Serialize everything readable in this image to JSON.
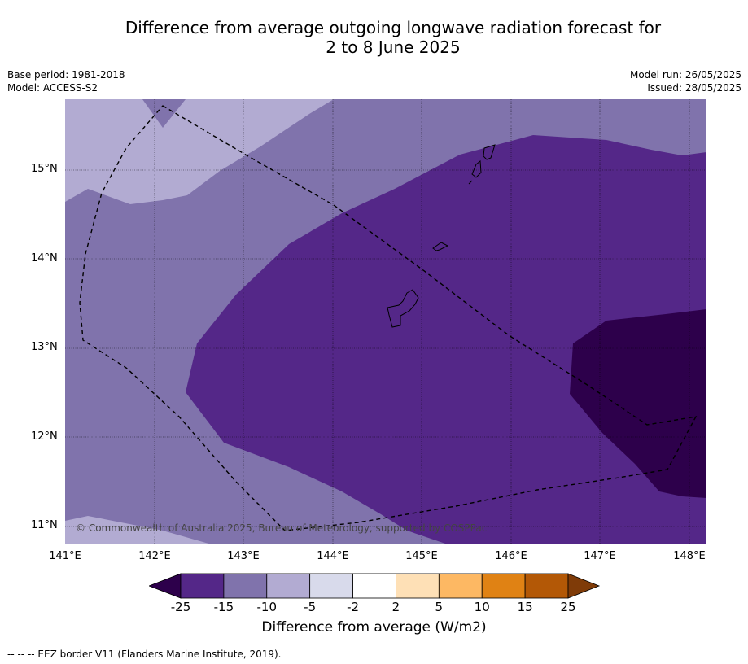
{
  "title": {
    "line1": "Difference from average outgoing longwave radiation forecast for",
    "line2": "2 to 8 June 2025"
  },
  "meta": {
    "base_period": "Base period: 1981-2018",
    "model": "Model: ACCESS-S2",
    "model_run": "Model run: 26/05/2025",
    "issued": "Issued: 28/05/2025"
  },
  "map": {
    "lon_range": [
      141.0,
      148.2
    ],
    "lat_range": [
      10.8,
      15.8
    ],
    "lon_ticks": [
      "141°E",
      "142°E",
      "143°E",
      "144°E",
      "145°E",
      "146°E",
      "147°E",
      "148°E"
    ],
    "lat_ticks": [
      "15°N",
      "14°N",
      "13°N",
      "12°N",
      "11°N"
    ],
    "copyright": "© Commonwealth of Australia 2025, Bureau of Meteorology, supported by COSPPac"
  },
  "colorbar": {
    "tick_labels": [
      "-25",
      "-15",
      "-10",
      "-5",
      "-2",
      "2",
      "5",
      "10",
      "15",
      "25"
    ],
    "colors": [
      "#2d004b",
      "#542788",
      "#8073ac",
      "#b2abd2",
      "#d8daeb",
      "#ffffff",
      "#fee0b6",
      "#fdb863",
      "#e08214",
      "#b35806",
      "#7f3b08"
    ],
    "label": "Difference from average (W/m2)"
  },
  "footnote": "--  --  -- EEZ border V11 (Flanders Marine Institute, 2019)."
}
